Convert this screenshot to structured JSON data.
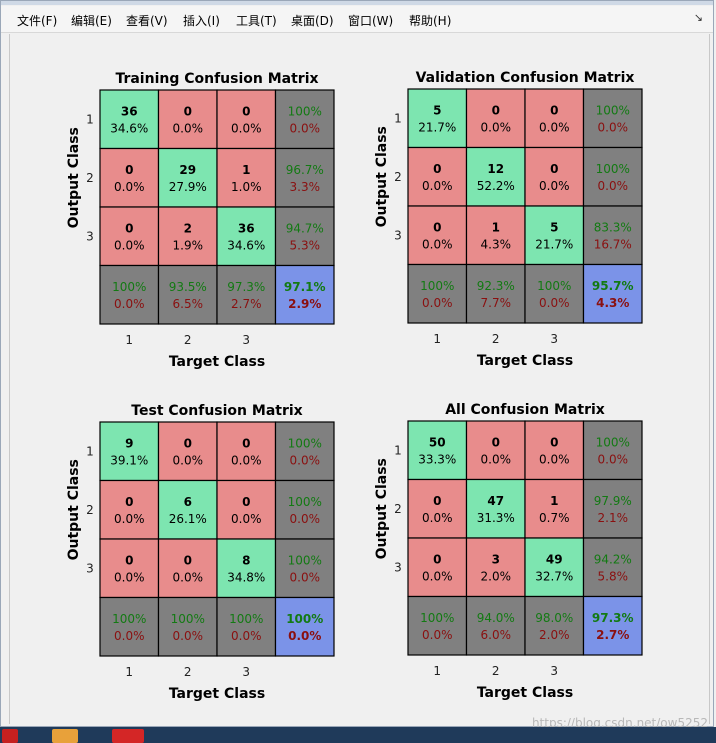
{
  "menu": {
    "items": [
      "文件(F)",
      "编辑(E)",
      "查看(V)",
      "插入(I)",
      "工具(T)",
      "桌面(D)",
      "窗口(W)",
      "帮助(H)"
    ],
    "arrow": "↘"
  },
  "colors": {
    "correct": "#7de5b0",
    "incorrect": "#e88c8c",
    "summary": "#808080",
    "total": "#7b93e8"
  },
  "labels": {
    "xlabel": "Target Class",
    "ylabel": "Output Class",
    "class_ticks": [
      "1",
      "2",
      "3"
    ]
  },
  "watermark": "https://blog.csdn.net/ow5252",
  "chart_data": [
    {
      "type": "table",
      "title": "Training Confusion Matrix",
      "xlabel": "Target Class",
      "ylabel": "Output Class",
      "classes": [
        "1",
        "2",
        "3"
      ],
      "counts": [
        [
          36,
          0,
          0
        ],
        [
          0,
          29,
          1
        ],
        [
          0,
          2,
          36
        ]
      ],
      "percents": [
        [
          "34.6%",
          "0.0%",
          "0.0%"
        ],
        [
          "0.0%",
          "27.9%",
          "1.0%"
        ],
        [
          "0.0%",
          "1.9%",
          "34.6%"
        ]
      ],
      "row_summary": [
        [
          "100%",
          "0.0%"
        ],
        [
          "96.7%",
          "3.3%"
        ],
        [
          "94.7%",
          "5.3%"
        ]
      ],
      "col_summary": [
        [
          "100%",
          "0.0%"
        ],
        [
          "93.5%",
          "6.5%"
        ],
        [
          "97.3%",
          "2.7%"
        ]
      ],
      "total": [
        "97.1%",
        "2.9%"
      ]
    },
    {
      "type": "table",
      "title": "Validation Confusion Matrix",
      "xlabel": "Target Class",
      "ylabel": "Output Class",
      "classes": [
        "1",
        "2",
        "3"
      ],
      "counts": [
        [
          5,
          0,
          0
        ],
        [
          0,
          12,
          0
        ],
        [
          0,
          1,
          5
        ]
      ],
      "percents": [
        [
          "21.7%",
          "0.0%",
          "0.0%"
        ],
        [
          "0.0%",
          "52.2%",
          "0.0%"
        ],
        [
          "0.0%",
          "4.3%",
          "21.7%"
        ]
      ],
      "row_summary": [
        [
          "100%",
          "0.0%"
        ],
        [
          "100%",
          "0.0%"
        ],
        [
          "83.3%",
          "16.7%"
        ]
      ],
      "col_summary": [
        [
          "100%",
          "0.0%"
        ],
        [
          "92.3%",
          "7.7%"
        ],
        [
          "100%",
          "0.0%"
        ]
      ],
      "total": [
        "95.7%",
        "4.3%"
      ]
    },
    {
      "type": "table",
      "title": "Test Confusion Matrix",
      "xlabel": "Target Class",
      "ylabel": "Output Class",
      "classes": [
        "1",
        "2",
        "3"
      ],
      "counts": [
        [
          9,
          0,
          0
        ],
        [
          0,
          6,
          0
        ],
        [
          0,
          0,
          8
        ]
      ],
      "percents": [
        [
          "39.1%",
          "0.0%",
          "0.0%"
        ],
        [
          "0.0%",
          "26.1%",
          "0.0%"
        ],
        [
          "0.0%",
          "0.0%",
          "34.8%"
        ]
      ],
      "row_summary": [
        [
          "100%",
          "0.0%"
        ],
        [
          "100%",
          "0.0%"
        ],
        [
          "100%",
          "0.0%"
        ]
      ],
      "col_summary": [
        [
          "100%",
          "0.0%"
        ],
        [
          "100%",
          "0.0%"
        ],
        [
          "100%",
          "0.0%"
        ]
      ],
      "total": [
        "100%",
        "0.0%"
      ]
    },
    {
      "type": "table",
      "title": "All Confusion Matrix",
      "xlabel": "Target Class",
      "ylabel": "Output Class",
      "classes": [
        "1",
        "2",
        "3"
      ],
      "counts": [
        [
          50,
          0,
          0
        ],
        [
          0,
          47,
          1
        ],
        [
          0,
          3,
          49
        ]
      ],
      "percents": [
        [
          "33.3%",
          "0.0%",
          "0.0%"
        ],
        [
          "0.0%",
          "31.3%",
          "0.7%"
        ],
        [
          "0.0%",
          "2.0%",
          "32.7%"
        ]
      ],
      "row_summary": [
        [
          "100%",
          "0.0%"
        ],
        [
          "97.9%",
          "2.1%"
        ],
        [
          "94.2%",
          "5.8%"
        ]
      ],
      "col_summary": [
        [
          "100%",
          "0.0%"
        ],
        [
          "94.0%",
          "6.0%"
        ],
        [
          "98.0%",
          "2.0%"
        ]
      ],
      "total": [
        "97.3%",
        "2.7%"
      ]
    }
  ]
}
